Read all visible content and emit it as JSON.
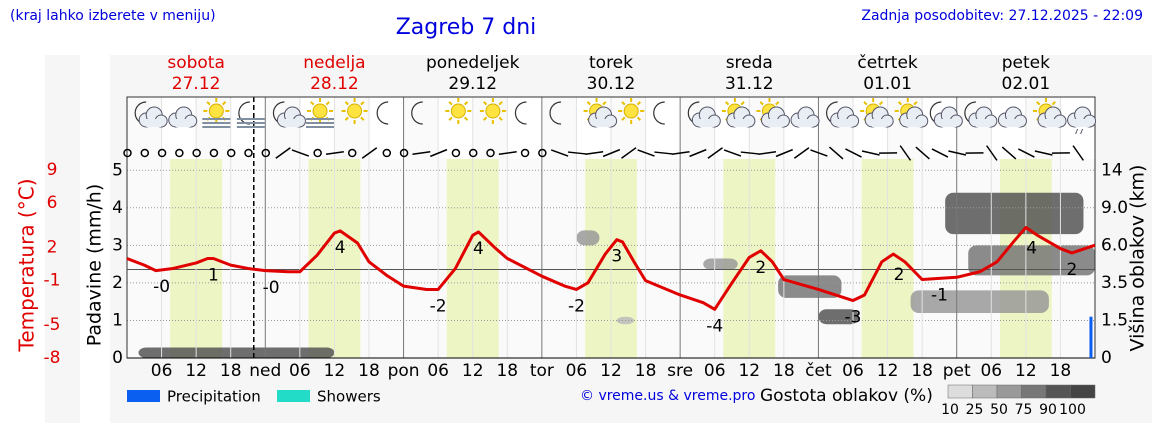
{
  "chart_data": {
    "type": "line",
    "subtitle": "(kraj lahko izberete v meniju)",
    "title": "Zagreb 7 dni",
    "updated": "Zadnja posodobitev: 27.12.2025 - 22:09",
    "days": [
      {
        "name": "sobota",
        "date": "27.12",
        "color": "#e00000",
        "sunrise": 7.5,
        "sunset": 16.5
      },
      {
        "name": "nedelja",
        "date": "28.12",
        "color": "#e00000",
        "sunrise": 7.5,
        "sunset": 16.5
      },
      {
        "name": "ponedeljek",
        "date": "29.12",
        "color": "#000000",
        "sunrise": 7.5,
        "sunset": 16.5
      },
      {
        "name": "torek",
        "date": "30.12",
        "color": "#000000",
        "sunrise": 7.5,
        "sunset": 16.5
      },
      {
        "name": "sreda",
        "date": "31.12",
        "color": "#000000",
        "sunrise": 7.5,
        "sunset": 16.5
      },
      {
        "name": "četrtek",
        "date": "01.01",
        "color": "#000000",
        "sunrise": 7.5,
        "sunset": 16.5
      },
      {
        "name": "petek",
        "date": "02.01",
        "color": "#000000",
        "sunrise": 7.5,
        "sunset": 16.5
      }
    ],
    "xlim": [
      0,
      168
    ],
    "xticks": [
      {
        "value": 6,
        "label": "06"
      },
      {
        "value": 12,
        "label": "12"
      },
      {
        "value": 18,
        "label": "18"
      },
      {
        "value": 24,
        "label": "ned"
      },
      {
        "value": 30,
        "label": "06"
      },
      {
        "value": 36,
        "label": "12"
      },
      {
        "value": 42,
        "label": "18"
      },
      {
        "value": 48,
        "label": "pon"
      },
      {
        "value": 54,
        "label": "06"
      },
      {
        "value": 60,
        "label": "12"
      },
      {
        "value": 66,
        "label": "18"
      },
      {
        "value": 72,
        "label": "tor"
      },
      {
        "value": 78,
        "label": "06"
      },
      {
        "value": 84,
        "label": "12"
      },
      {
        "value": 90,
        "label": "18"
      },
      {
        "value": 96,
        "label": "sre"
      },
      {
        "value": 102,
        "label": "06"
      },
      {
        "value": 108,
        "label": "12"
      },
      {
        "value": 114,
        "label": "18"
      },
      {
        "value": 120,
        "label": "čet"
      },
      {
        "value": 126,
        "label": "06"
      },
      {
        "value": 132,
        "label": "12"
      },
      {
        "value": 138,
        "label": "18"
      },
      {
        "value": 144,
        "label": "pet"
      },
      {
        "value": 150,
        "label": "06"
      },
      {
        "value": 156,
        "label": "12"
      },
      {
        "value": 162,
        "label": "18"
      }
    ],
    "now": 22,
    "ylabel": "Padavine (mm/h)",
    "ylim": [
      0,
      5.3
    ],
    "yticks": [
      0,
      1,
      2,
      3,
      4,
      5
    ],
    "grid": true,
    "y2label": "Višina oblakov (km)",
    "y2ticks": [
      0,
      1.5,
      3.5,
      {
        "value": 6,
        "label": "6.0"
      },
      {
        "value": 9,
        "label": "9.0"
      },
      14
    ],
    "temperature": {
      "label": "Temperatura (°C)",
      "color": "#e00000",
      "lim": [
        -8,
        10
      ],
      "ticks": [
        -8,
        -5,
        -1,
        2,
        6,
        9
      ],
      "x": [
        0,
        3,
        5,
        8,
        12,
        14,
        15,
        18,
        21,
        24,
        28,
        30,
        33,
        36,
        37,
        40,
        42,
        45,
        48,
        52,
        54,
        57,
        60,
        61,
        64,
        66,
        72,
        76,
        78,
        80,
        83,
        85,
        86,
        88,
        90,
        96,
        100,
        102,
        105,
        108,
        110,
        112,
        114,
        120,
        126,
        128,
        131,
        133,
        135,
        138,
        144,
        148,
        151,
        154,
        156,
        158,
        162,
        164,
        168
      ],
      "values": [
        1.0,
        0.4,
        -0.1,
        0.1,
        0.6,
        1.0,
        1.0,
        0.4,
        0.1,
        -0.1,
        -0.2,
        -0.2,
        1.3,
        3.3,
        3.5,
        2.4,
        0.7,
        -0.5,
        -1.5,
        -1.8,
        -1.8,
        0.1,
        3.1,
        3.4,
        1.9,
        1.0,
        -0.6,
        -1.5,
        -1.8,
        -1.2,
        1.4,
        2.7,
        2.5,
        0.7,
        -1.0,
        -2.3,
        -3.0,
        -3.6,
        -1.2,
        1.1,
        1.7,
        0.7,
        -0.9,
        -1.8,
        -2.8,
        -2.3,
        0.7,
        1.4,
        0.7,
        -0.9,
        -0.7,
        -0.2,
        0.7,
        2.6,
        3.8,
        3.1,
        1.9,
        1.5,
        2.2
      ],
      "extremes": [
        {
          "x": 6,
          "label": "-0"
        },
        {
          "x": 15,
          "label": "1"
        },
        {
          "x": 25,
          "label": "-0"
        },
        {
          "x": 37,
          "label": "4"
        },
        {
          "x": 54,
          "label": "-2"
        },
        {
          "x": 61,
          "label": "4"
        },
        {
          "x": 78,
          "label": "-2"
        },
        {
          "x": 85,
          "label": "3"
        },
        {
          "x": 102,
          "label": "-4"
        },
        {
          "x": 110,
          "label": "2"
        },
        {
          "x": 126,
          "label": "-3"
        },
        {
          "x": 134,
          "label": "2"
        },
        {
          "x": 141,
          "label": "-1"
        },
        {
          "x": 157,
          "label": "4"
        },
        {
          "x": 164,
          "label": "2"
        }
      ]
    },
    "series": [
      {
        "name": "Precipitation",
        "color": "#0a5ef0",
        "x": [
          167.3
        ],
        "values": [
          1.1
        ]
      },
      {
        "name": "Showers",
        "color": "#22dcc8",
        "x": [],
        "values": []
      }
    ],
    "clouds": [
      {
        "x": [
          2,
          36
        ],
        "y": [
          0,
          0.28
        ],
        "density": 90
      },
      {
        "x": [
          78,
          82
        ],
        "y": [
          3.0,
          3.4
        ],
        "density": 50
      },
      {
        "x": [
          100,
          106
        ],
        "y": [
          2.35,
          2.65
        ],
        "density": 50
      },
      {
        "x": [
          113,
          124
        ],
        "y": [
          1.6,
          2.2
        ],
        "density": 75
      },
      {
        "x": [
          120,
          127
        ],
        "y": [
          0.9,
          1.3
        ],
        "density": 90
      },
      {
        "x": [
          136,
          160
        ],
        "y": [
          1.2,
          1.8
        ],
        "density": 50
      },
      {
        "x": [
          146,
          168
        ],
        "y": [
          2.2,
          3.0
        ],
        "density": 75
      },
      {
        "x": [
          142,
          166
        ],
        "y": [
          3.3,
          4.4
        ],
        "density": 90
      },
      {
        "x": [
          85,
          88
        ],
        "y": [
          0.9,
          1.1
        ],
        "density": 25
      }
    ],
    "credit": "© vreme.us & vreme.pro",
    "cloud_legend": {
      "title": "Gostota oblakov (%)",
      "levels": [
        10,
        25,
        50,
        75,
        90,
        100
      ],
      "colors": [
        "#dddddd",
        "#bbbbbb",
        "#999999",
        "#777777",
        "#555555",
        "#444444"
      ]
    }
  }
}
